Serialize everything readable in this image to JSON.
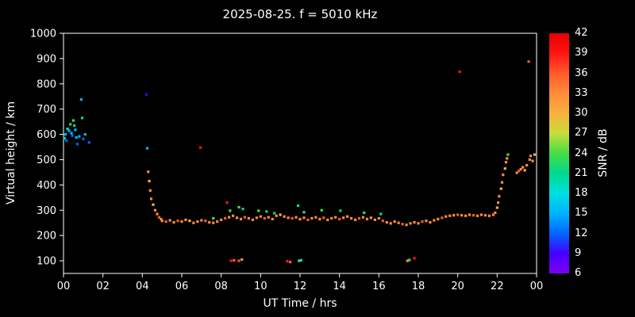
{
  "colors": {
    "background": "#000000",
    "foreground": "#ffffff"
  },
  "chart_data": {
    "type": "scatter",
    "title": "2025-08-25. f = 5010 kHz",
    "xlabel": "UT Time / hrs",
    "ylabel": "Virtual height / km",
    "xlim": [
      0,
      24
    ],
    "ylim": [
      50,
      1000
    ],
    "grid": false,
    "xticks": [
      {
        "v": 0,
        "label": "00"
      },
      {
        "v": 2,
        "label": "02"
      },
      {
        "v": 4,
        "label": "04"
      },
      {
        "v": 6,
        "label": "06"
      },
      {
        "v": 8,
        "label": "08"
      },
      {
        "v": 10,
        "label": "10"
      },
      {
        "v": 12,
        "label": "12"
      },
      {
        "v": 14,
        "label": "14"
      },
      {
        "v": 16,
        "label": "16"
      },
      {
        "v": 18,
        "label": "18"
      },
      {
        "v": 20,
        "label": "20"
      },
      {
        "v": 22,
        "label": "22"
      },
      {
        "v": 24,
        "label": "00"
      }
    ],
    "yticks": [
      100,
      200,
      300,
      400,
      500,
      600,
      700,
      800,
      900,
      1000
    ],
    "colorbar": {
      "label": "SNR / dB",
      "min": 6,
      "max": 42,
      "ticks": [
        6,
        9,
        12,
        15,
        18,
        21,
        24,
        27,
        30,
        33,
        36,
        39,
        42
      ],
      "stops": [
        [
          6,
          "#7c00f0"
        ],
        [
          9,
          "#4400ff"
        ],
        [
          12,
          "#0066ff"
        ],
        [
          15,
          "#00b4ff"
        ],
        [
          18,
          "#00e0e0"
        ],
        [
          21,
          "#00d98c"
        ],
        [
          24,
          "#44dd44"
        ],
        [
          27,
          "#c8dc3c"
        ],
        [
          30,
          "#f7b03e"
        ],
        [
          33,
          "#ff8c3c"
        ],
        [
          36,
          "#ff5a28"
        ],
        [
          39,
          "#ff1414"
        ],
        [
          42,
          "#e60000"
        ]
      ]
    },
    "marker_size": 3.2,
    "points": [
      [
        0.05,
        585,
        18
      ],
      [
        0.1,
        600,
        15
      ],
      [
        0.15,
        575,
        12
      ],
      [
        0.2,
        622,
        18
      ],
      [
        0.28,
        615,
        15
      ],
      [
        0.35,
        640,
        21
      ],
      [
        0.4,
        605,
        15
      ],
      [
        0.45,
        595,
        12
      ],
      [
        0.5,
        655,
        24
      ],
      [
        0.55,
        635,
        21
      ],
      [
        0.6,
        618,
        15
      ],
      [
        0.65,
        588,
        15
      ],
      [
        0.7,
        562,
        12
      ],
      [
        0.8,
        592,
        15
      ],
      [
        0.9,
        738,
        15
      ],
      [
        0.95,
        665,
        21
      ],
      [
        1.0,
        582,
        12
      ],
      [
        1.1,
        600,
        15
      ],
      [
        1.3,
        568,
        12
      ],
      [
        4.2,
        758,
        9
      ],
      [
        4.25,
        545,
        15
      ],
      [
        4.3,
        452,
        33
      ],
      [
        4.35,
        415,
        30
      ],
      [
        4.4,
        378,
        33
      ],
      [
        4.45,
        345,
        33
      ],
      [
        4.55,
        322,
        30
      ],
      [
        4.65,
        300,
        33
      ],
      [
        4.75,
        285,
        33
      ],
      [
        4.85,
        272,
        36
      ],
      [
        4.95,
        265,
        33
      ],
      [
        5.0,
        258,
        33
      ],
      [
        5.2,
        255,
        36
      ],
      [
        5.4,
        260,
        33
      ],
      [
        5.6,
        252,
        33
      ],
      [
        5.8,
        258,
        36
      ],
      [
        6.0,
        255,
        33
      ],
      [
        6.2,
        262,
        33
      ],
      [
        6.4,
        258,
        30
      ],
      [
        6.6,
        250,
        33
      ],
      [
        6.8,
        255,
        33
      ],
      [
        7.0,
        260,
        33
      ],
      [
        7.2,
        258,
        36
      ],
      [
        7.4,
        252,
        33
      ],
      [
        7.6,
        250,
        33
      ],
      [
        7.8,
        255,
        33
      ],
      [
        8.0,
        262,
        33
      ],
      [
        8.2,
        268,
        36
      ],
      [
        8.4,
        272,
        33
      ],
      [
        8.6,
        278,
        33
      ],
      [
        8.8,
        270,
        33
      ],
      [
        9.0,
        265,
        33
      ],
      [
        9.2,
        272,
        36
      ],
      [
        9.4,
        268,
        33
      ],
      [
        9.6,
        262,
        33
      ],
      [
        9.8,
        270,
        33
      ],
      [
        10.0,
        275,
        33
      ],
      [
        10.2,
        268,
        36
      ],
      [
        10.4,
        272,
        33
      ],
      [
        10.6,
        265,
        33
      ],
      [
        10.8,
        278,
        33
      ],
      [
        11.0,
        282,
        30
      ],
      [
        11.2,
        275,
        33
      ],
      [
        11.4,
        270,
        33
      ],
      [
        11.6,
        268,
        36
      ],
      [
        11.8,
        272,
        33
      ],
      [
        12.0,
        265,
        33
      ],
      [
        12.2,
        270,
        33
      ],
      [
        12.4,
        262,
        36
      ],
      [
        12.6,
        268,
        33
      ],
      [
        12.8,
        272,
        33
      ],
      [
        13.0,
        265,
        33
      ],
      [
        13.2,
        270,
        36
      ],
      [
        13.4,
        262,
        33
      ],
      [
        13.6,
        268,
        33
      ],
      [
        13.8,
        272,
        33
      ],
      [
        14.0,
        265,
        36
      ],
      [
        14.2,
        270,
        33
      ],
      [
        14.4,
        275,
        33
      ],
      [
        14.6,
        268,
        33
      ],
      [
        14.8,
        262,
        33
      ],
      [
        15.0,
        268,
        36
      ],
      [
        15.2,
        272,
        33
      ],
      [
        15.4,
        265,
        33
      ],
      [
        15.6,
        270,
        33
      ],
      [
        15.8,
        262,
        33
      ],
      [
        16.0,
        268,
        33
      ],
      [
        16.2,
        258,
        36
      ],
      [
        16.4,
        252,
        33
      ],
      [
        16.6,
        248,
        33
      ],
      [
        16.8,
        255,
        33
      ],
      [
        17.0,
        250,
        33
      ],
      [
        17.2,
        245,
        36
      ],
      [
        17.4,
        242,
        33
      ],
      [
        17.6,
        248,
        33
      ],
      [
        17.8,
        252,
        33
      ],
      [
        18.0,
        248,
        33
      ],
      [
        18.2,
        255,
        36
      ],
      [
        18.4,
        258,
        33
      ],
      [
        18.6,
        252,
        33
      ],
      [
        18.8,
        260,
        33
      ],
      [
        19.0,
        265,
        33
      ],
      [
        19.2,
        270,
        36
      ],
      [
        19.4,
        275,
        33
      ],
      [
        19.6,
        278,
        33
      ],
      [
        19.8,
        280,
        33
      ],
      [
        20.0,
        282,
        36
      ],
      [
        20.2,
        280,
        33
      ],
      [
        20.4,
        278,
        33
      ],
      [
        20.6,
        282,
        33
      ],
      [
        20.8,
        280,
        36
      ],
      [
        21.0,
        278,
        33
      ],
      [
        21.2,
        282,
        33
      ],
      [
        21.4,
        280,
        33
      ],
      [
        21.6,
        278,
        33
      ],
      [
        21.8,
        282,
        33
      ],
      [
        6.95,
        548,
        39
      ],
      [
        8.3,
        330,
        39
      ],
      [
        8.45,
        298,
        24
      ],
      [
        7.6,
        268,
        24
      ],
      [
        8.9,
        312,
        24
      ],
      [
        9.1,
        305,
        21
      ],
      [
        9.9,
        298,
        24
      ],
      [
        10.3,
        295,
        21
      ],
      [
        10.7,
        288,
        21
      ],
      [
        11.9,
        318,
        21
      ],
      [
        12.2,
        292,
        24
      ],
      [
        13.1,
        300,
        24
      ],
      [
        14.05,
        298,
        21
      ],
      [
        15.25,
        290,
        24
      ],
      [
        16.1,
        285,
        21
      ],
      [
        8.5,
        100,
        39
      ],
      [
        8.65,
        102,
        36
      ],
      [
        8.9,
        100,
        36
      ],
      [
        9.05,
        105,
        33
      ],
      [
        11.35,
        98,
        39
      ],
      [
        11.5,
        95,
        36
      ],
      [
        11.95,
        100,
        24
      ],
      [
        12.05,
        102,
        18
      ],
      [
        17.45,
        100,
        33
      ],
      [
        17.55,
        103,
        24
      ],
      [
        17.8,
        110,
        39
      ],
      [
        20.1,
        848,
        39
      ],
      [
        23.6,
        888,
        36
      ],
      [
        21.9,
        290,
        33
      ],
      [
        22.0,
        310,
        30
      ],
      [
        22.05,
        330,
        33
      ],
      [
        22.1,
        355,
        33
      ],
      [
        22.2,
        385,
        30
      ],
      [
        22.25,
        410,
        33
      ],
      [
        22.3,
        440,
        33
      ],
      [
        22.4,
        465,
        30
      ],
      [
        22.45,
        490,
        33
      ],
      [
        22.5,
        505,
        33
      ],
      [
        22.55,
        520,
        24
      ],
      [
        23.0,
        448,
        33
      ],
      [
        23.1,
        455,
        36
      ],
      [
        23.2,
        462,
        33
      ],
      [
        23.3,
        470,
        33
      ],
      [
        23.4,
        458,
        30
      ],
      [
        23.5,
        478,
        33
      ],
      [
        23.65,
        500,
        33
      ],
      [
        23.7,
        515,
        33
      ],
      [
        23.8,
        495,
        33
      ],
      [
        23.9,
        520,
        30
      ]
    ]
  }
}
